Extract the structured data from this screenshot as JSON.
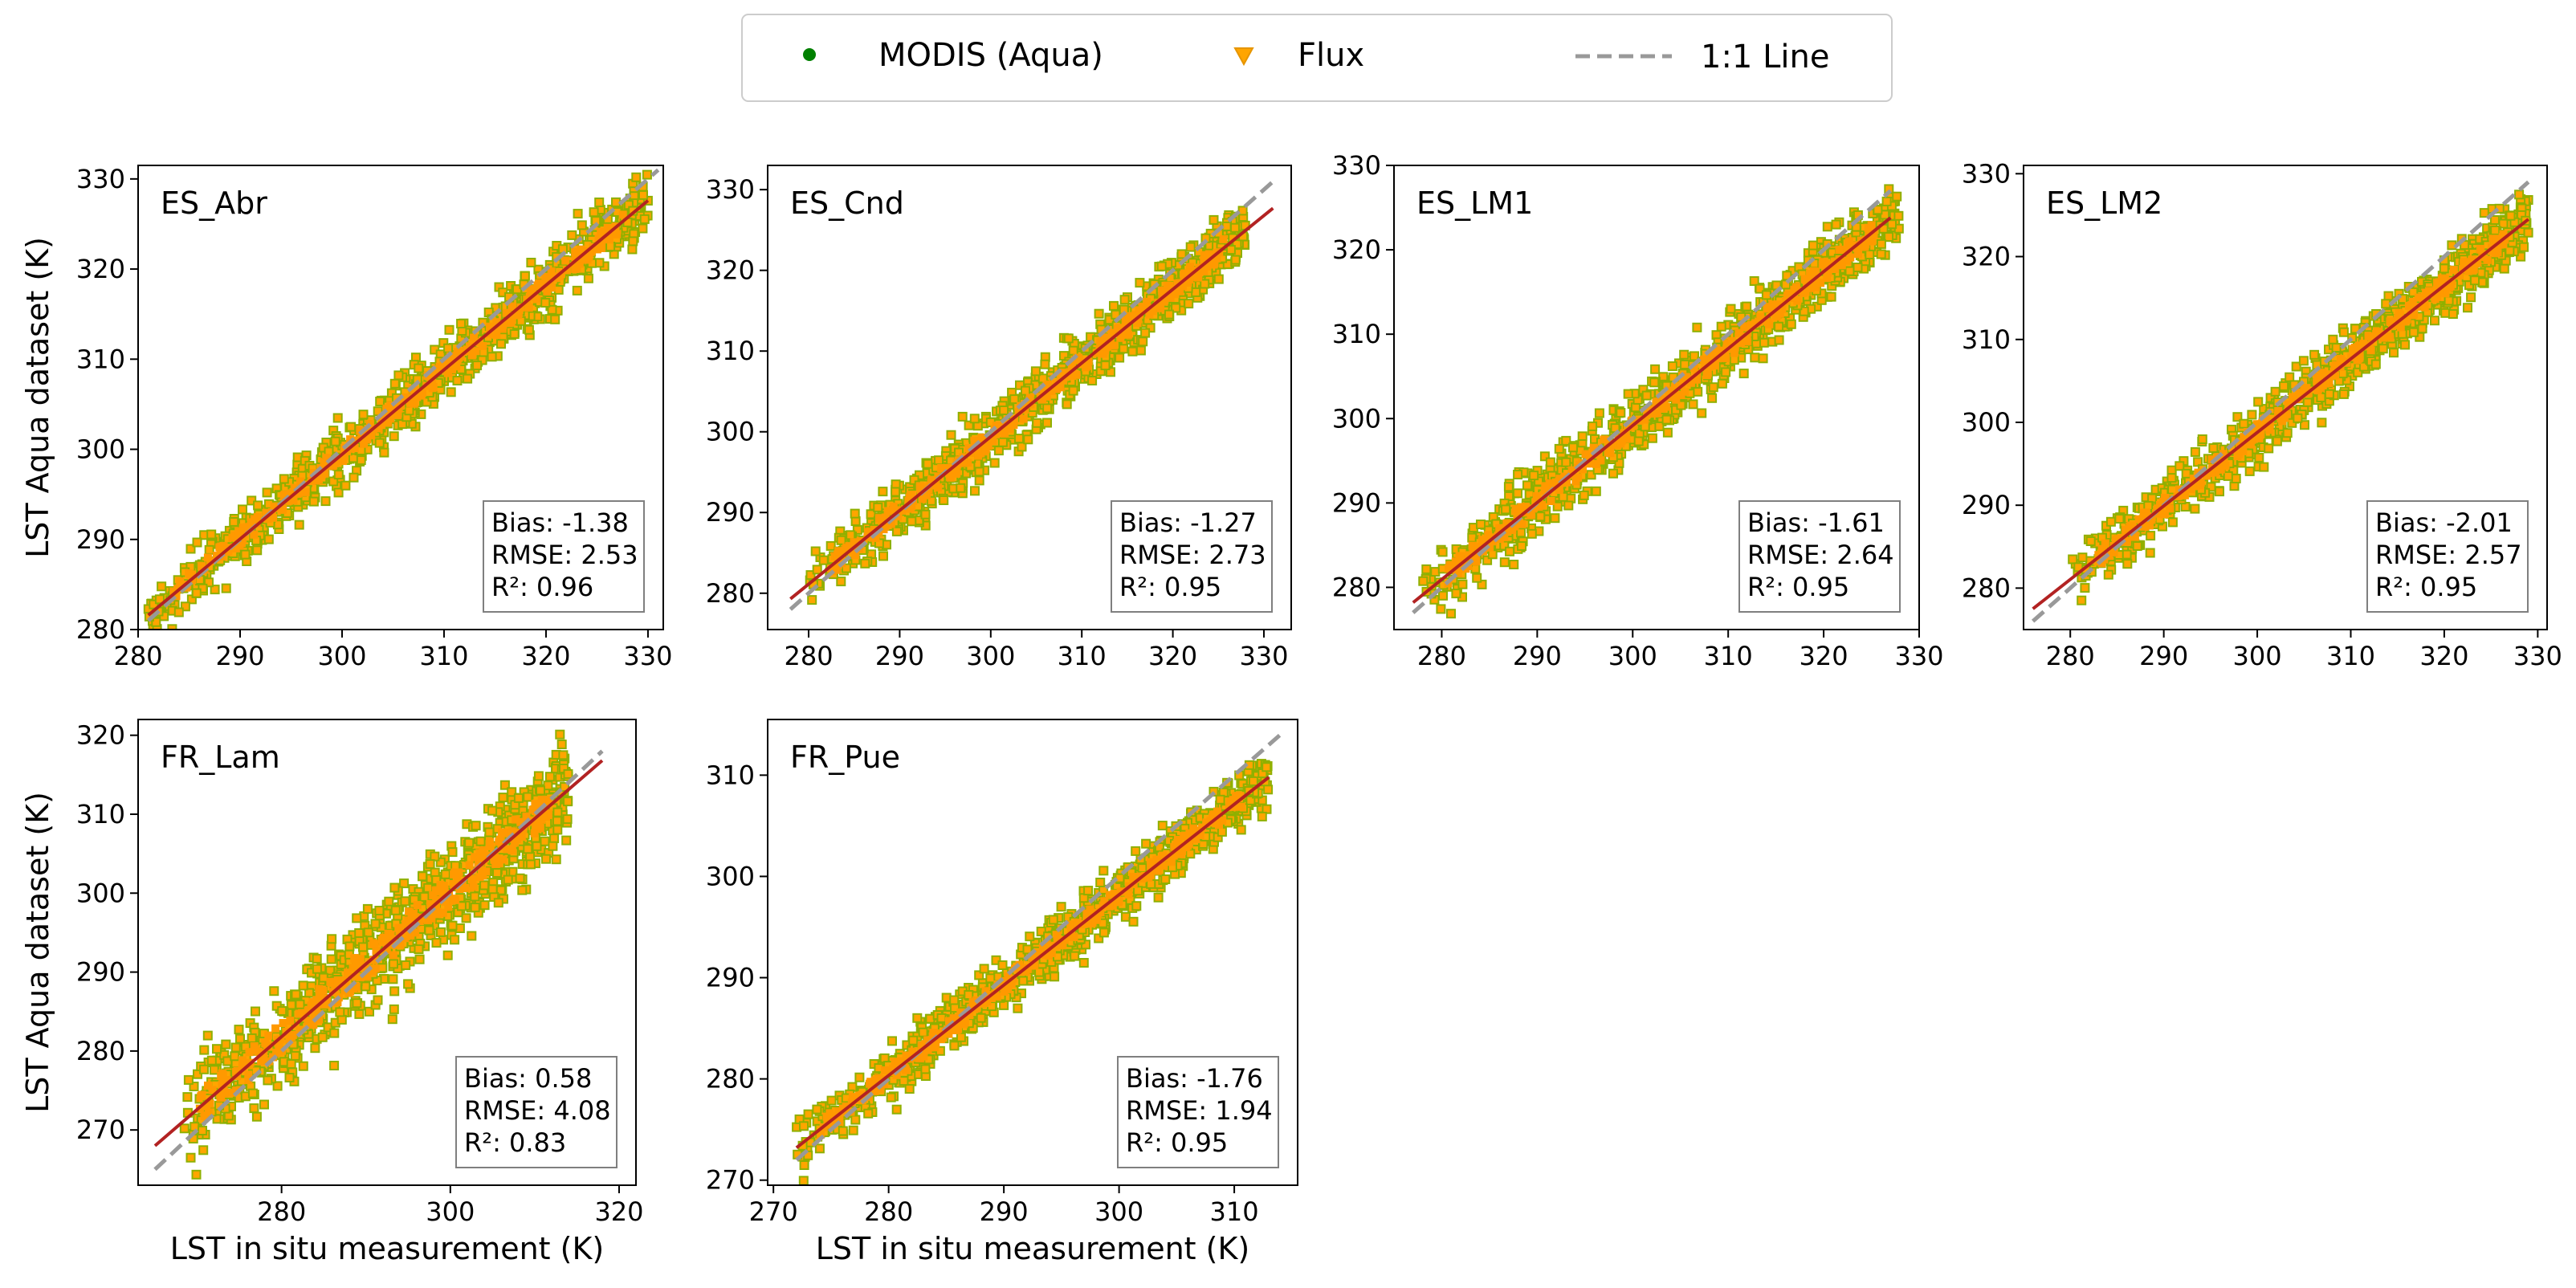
{
  "legend": {
    "items": [
      {
        "label": "MODIS (Aqua)",
        "marker": "dot",
        "color": "#008000"
      },
      {
        "label": "Flux",
        "marker": "triangle-down",
        "color": "#ffa500"
      },
      {
        "label": "1:1 Line",
        "marker": "dashed-line",
        "color": "#999999"
      }
    ]
  },
  "colors": {
    "point_fill": "#ffa500",
    "point_edge": "#8fb000",
    "point_core": "#ff9900",
    "regression": "#b22222",
    "one_to_one": "#999999"
  },
  "chart_data": [
    {
      "type": "scatter",
      "title": "ES_Abr",
      "xlabel": "",
      "ylabel": "LST Aqua dataset (K)",
      "xlim": [
        280,
        331.5
      ],
      "ylim": [
        280,
        331.5
      ],
      "xticks": [
        280,
        290,
        300,
        310,
        320,
        330
      ],
      "yticks": [
        280,
        290,
        300,
        310,
        320,
        330
      ],
      "range": [
        281,
        330
      ],
      "spread": 1.7,
      "regression": {
        "x": [
          281,
          330
        ],
        "y": [
          281.6,
          327.6
        ]
      },
      "one_to_one": [
        281,
        331
      ],
      "stats": [
        "Bias: -1.38",
        "RMSE: 2.53",
        "R²: 0.96"
      ]
    },
    {
      "type": "scatter",
      "title": "ES_Cnd",
      "xlabel": "",
      "ylabel": "",
      "xlim": [
        275.5,
        333
      ],
      "ylim": [
        275.5,
        333
      ],
      "xticks": [
        280,
        290,
        300,
        310,
        320,
        330
      ],
      "yticks": [
        280,
        290,
        300,
        310,
        320,
        330
      ],
      "range": [
        280,
        328
      ],
      "spread": 1.9,
      "regression": {
        "x": [
          278,
          331
        ],
        "y": [
          279.3,
          327.7
        ]
      },
      "one_to_one": [
        278,
        331
      ],
      "stats": [
        "Bias: -1.27",
        "RMSE: 2.73",
        "R²: 0.95"
      ]
    },
    {
      "type": "scatter",
      "title": "ES_LM1",
      "xlabel": "",
      "ylabel": "",
      "xlim": [
        275,
        330
      ],
      "ylim": [
        275,
        330
      ],
      "xticks": [
        280,
        290,
        300,
        310,
        320,
        330
      ],
      "yticks": [
        280,
        290,
        300,
        310,
        320,
        330
      ],
      "range": [
        278,
        328
      ],
      "spread": 2.0,
      "regression": {
        "x": [
          277,
          327
        ],
        "y": [
          278.2,
          323.8
        ]
      },
      "one_to_one": [
        277,
        327
      ],
      "stats": [
        "Bias: -1.61",
        "RMSE: 2.64",
        "R²: 0.95"
      ]
    },
    {
      "type": "scatter",
      "title": "ES_LM2",
      "xlabel": "",
      "ylabel": "",
      "xlim": [
        275,
        331
      ],
      "ylim": [
        275,
        331
      ],
      "xticks": [
        280,
        290,
        300,
        310,
        320,
        330
      ],
      "yticks": [
        280,
        290,
        300,
        310,
        320,
        330
      ],
      "range": [
        280,
        329
      ],
      "spread": 1.8,
      "regression": {
        "x": [
          276,
          329
        ],
        "y": [
          277.5,
          324.5
        ]
      },
      "one_to_one": [
        276,
        329
      ],
      "stats": [
        "Bias: -2.01",
        "RMSE: 2.57",
        "R²: 0.95"
      ]
    },
    {
      "type": "scatter",
      "title": "FR_Lam",
      "xlabel": "LST in situ measurement (K)",
      "ylabel": "LST Aqua dataset (K)",
      "xlim": [
        263,
        322
      ],
      "ylim": [
        263,
        322
      ],
      "xticks": [
        280,
        300,
        320
      ],
      "yticks": [
        270,
        280,
        290,
        300,
        310,
        320
      ],
      "range": [
        268,
        314
      ],
      "spread": 3.3,
      "regression": {
        "x": [
          265,
          318
        ],
        "y": [
          268.0,
          316.8
        ]
      },
      "one_to_one": [
        265,
        318
      ],
      "stats": [
        "Bias: 0.58",
        "RMSE: 4.08",
        "R²: 0.83"
      ]
    },
    {
      "type": "scatter",
      "title": "FR_Pue",
      "xlabel": "LST in situ measurement (K)",
      "ylabel": "",
      "xlim": [
        269.5,
        315.5
      ],
      "ylim": [
        269.5,
        315.5
      ],
      "xticks": [
        270,
        280,
        290,
        300,
        310
      ],
      "yticks": [
        270,
        280,
        290,
        300,
        310
      ],
      "range": [
        272,
        313
      ],
      "spread": 1.4,
      "regression": {
        "x": [
          272,
          313
        ],
        "y": [
          273.2,
          309.8
        ]
      },
      "one_to_one": [
        272,
        314
      ],
      "stats": [
        "Bias: -1.76",
        "RMSE: 1.94",
        "R²: 0.95"
      ]
    }
  ]
}
